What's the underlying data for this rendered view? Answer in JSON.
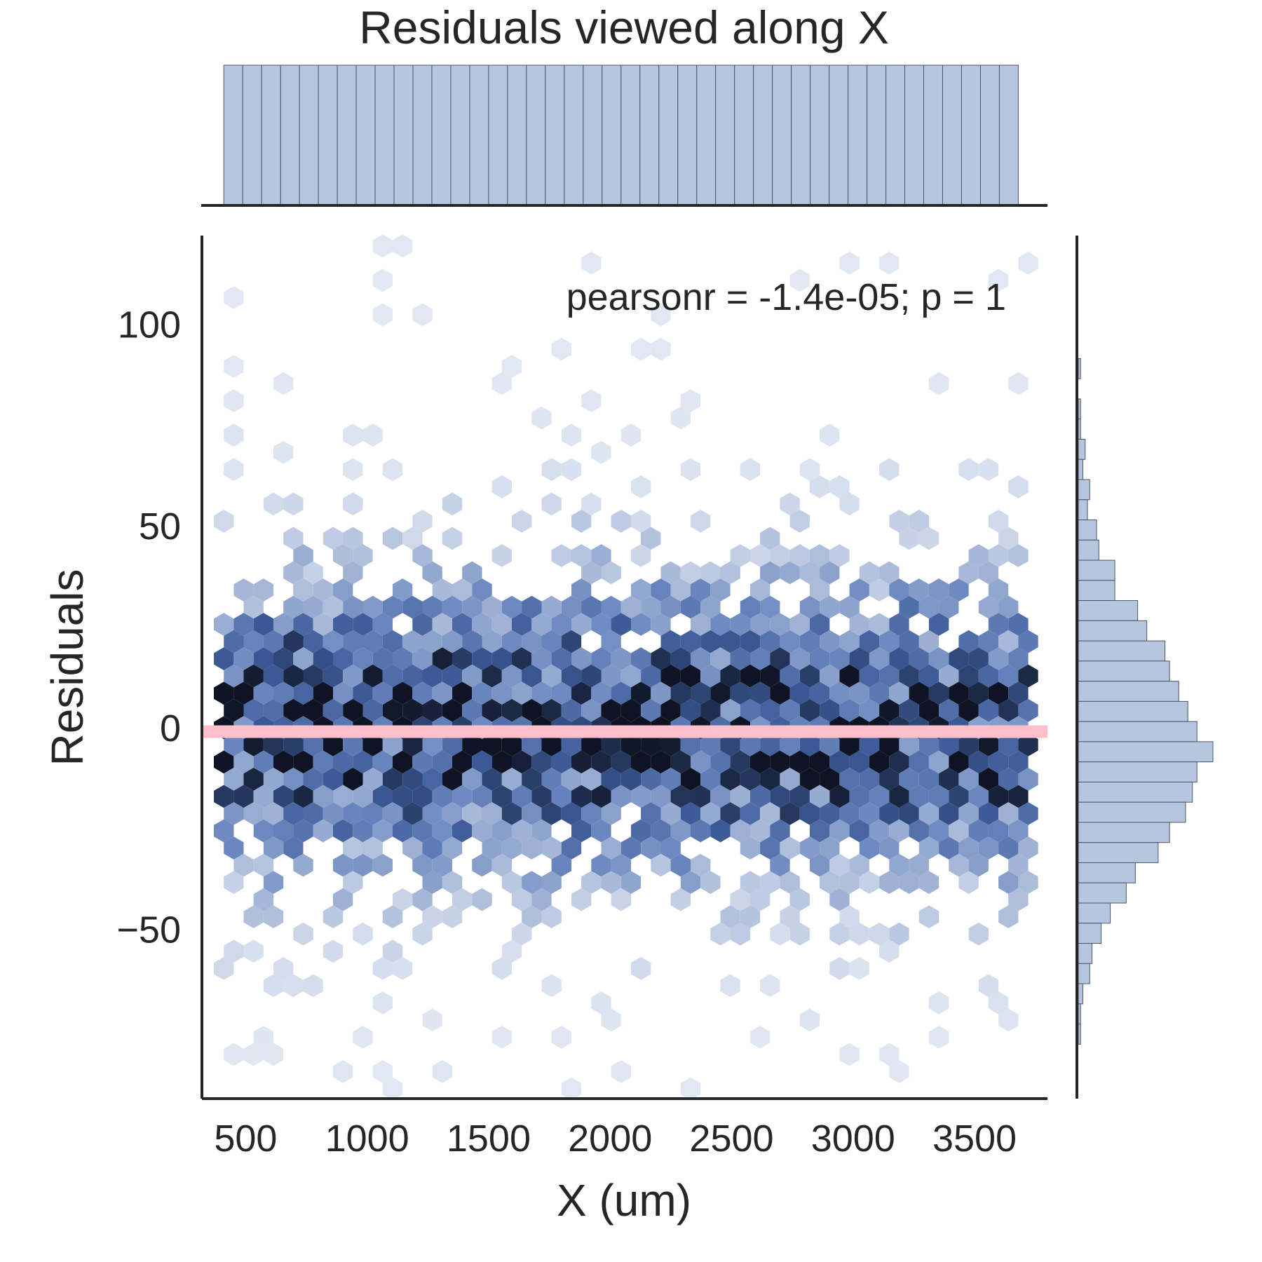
{
  "chart_data": {
    "type": "hexbin",
    "title": "Residuals viewed along X",
    "xlabel": "X (um)",
    "ylabel": "Residuals",
    "annotation": "pearsonr = -1.4e-05; p = 1",
    "xlim": [
      320,
      3800
    ],
    "ylim": [
      -92,
      122
    ],
    "xticks": [
      500,
      1000,
      1500,
      2000,
      2500,
      3000,
      3500
    ],
    "xtick_labels": [
      "500",
      "1000",
      "1500",
      "2000",
      "2500",
      "3000",
      "3500"
    ],
    "yticks": [
      100,
      50,
      0,
      -50
    ],
    "ytick_labels": [
      "100",
      "50",
      "0",
      "−50"
    ],
    "grid": false,
    "reference_line": {
      "y": -1,
      "color": "#ffc0cb"
    },
    "colors": {
      "hex_light": "#e1e8f3",
      "hex_dark": "#0e1423",
      "hist_fill": "#b7c6df",
      "hist_edge": "#4d5566",
      "text": "#262626"
    },
    "marginal_x": {
      "bin_edges": [
        410,
        3680
      ],
      "bin_count": 42,
      "relative_heights": "all bins equal (uniform)"
    },
    "marginal_y": {
      "bin_centers": [
        89,
        84,
        79,
        74,
        69,
        64,
        59,
        54,
        49,
        44,
        39,
        34,
        29,
        24,
        19,
        14,
        9,
        4,
        -1,
        -6,
        -11,
        -16,
        -21,
        -26,
        -31,
        -36,
        -41,
        -46,
        -51,
        -56,
        -61,
        -66,
        -71,
        -76
      ],
      "counts": [
        1,
        0,
        1,
        1,
        3,
        2,
        5,
        4,
        8,
        9,
        16,
        16,
        26,
        30,
        38,
        40,
        44,
        48,
        52,
        59,
        52,
        50,
        47,
        40,
        35,
        25,
        21,
        14,
        10,
        6,
        5,
        2,
        1,
        1
      ]
    },
    "hexbin": {
      "gridsize_x": 40,
      "note": "bin density shown on a white-to-navy scale; densest near residual 0"
    }
  }
}
